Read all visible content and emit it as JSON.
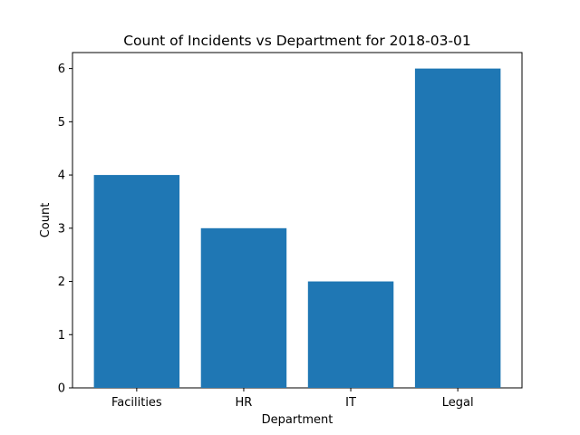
{
  "chart_data": {
    "type": "bar",
    "title": "Count of Incidents vs Department for 2018-03-01",
    "xlabel": "Department",
    "ylabel": "Count",
    "categories": [
      "Facilities",
      "HR",
      "IT",
      "Legal"
    ],
    "values": [
      4,
      3,
      2,
      6
    ],
    "ylim": [
      0,
      6.3
    ],
    "yticks": [
      "0",
      "1",
      "2",
      "3",
      "4",
      "5",
      "6"
    ],
    "bar_color": "#1f77b4",
    "grid": false,
    "legend": "none"
  }
}
